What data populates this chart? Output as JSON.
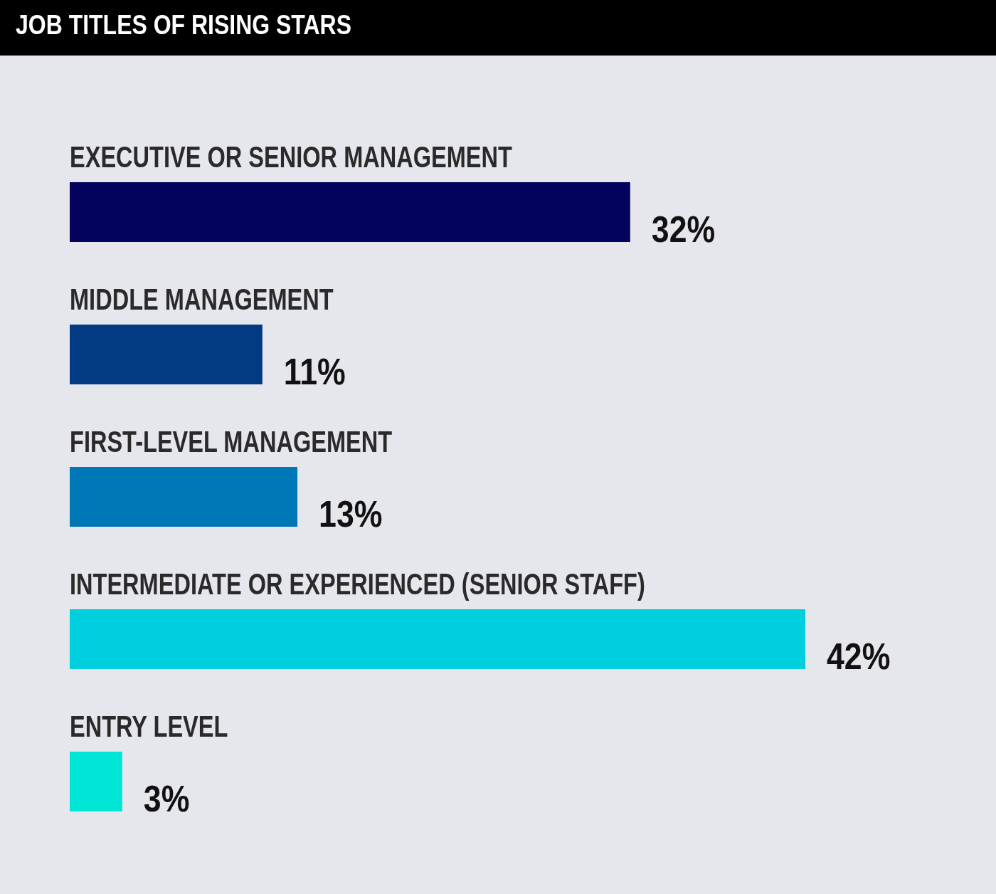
{
  "chart_data": {
    "type": "bar",
    "title": "JOB TITLES OF RISING STARS",
    "orientation": "horizontal",
    "categories": [
      "EXECUTIVE OR SENIOR MANAGEMENT",
      "MIDDLE MANAGEMENT",
      "FIRST-LEVEL MANAGEMENT",
      "INTERMEDIATE OR EXPERIENCED (SENIOR STAFF)",
      "ENTRY LEVEL"
    ],
    "values": [
      32,
      11,
      13,
      42,
      3
    ],
    "value_labels": [
      "32%",
      "11%",
      "13%",
      "42%",
      "3%"
    ],
    "colors": [
      "#03035e",
      "#033a84",
      "#0077b7",
      "#00d0de",
      "#00e6d6"
    ]
  }
}
